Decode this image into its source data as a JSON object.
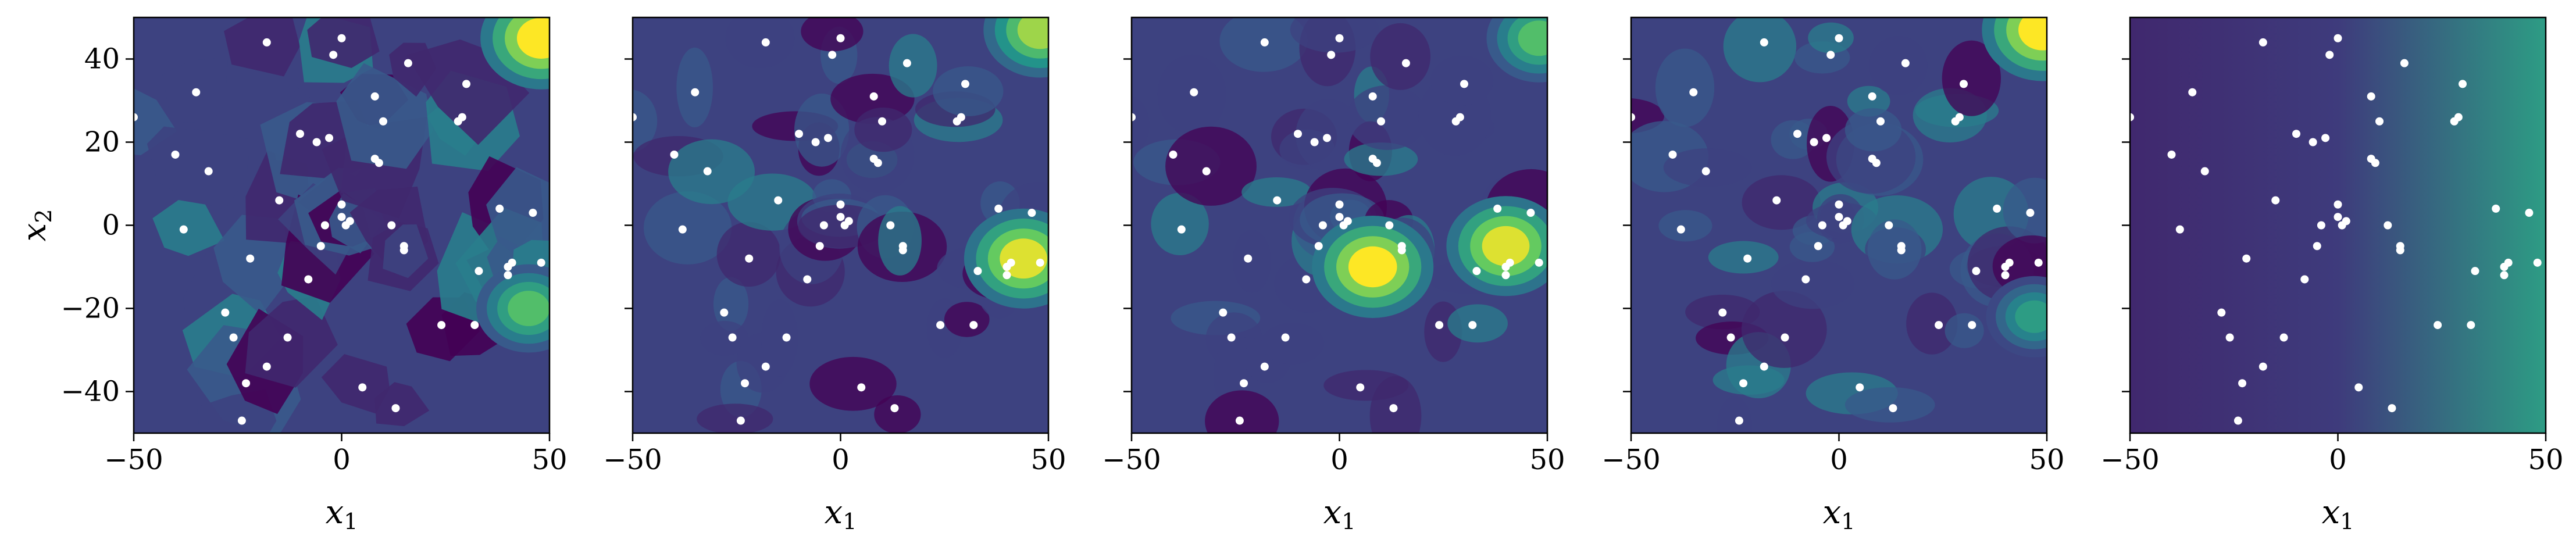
{
  "chart_data": {
    "type": "heatmap",
    "layout": "1x5 panels, shared y-axis",
    "xlabel": "x",
    "xlabel_sub": "1",
    "ylabel": "x",
    "ylabel_sub": "2",
    "xlim": [
      -50,
      50
    ],
    "ylim": [
      -50,
      50
    ],
    "x_ticks": [
      -50,
      0,
      50
    ],
    "x_tick_labels": [
      "−50",
      "0",
      "50"
    ],
    "y_ticks": [
      40,
      20,
      0,
      -20,
      -40
    ],
    "y_tick_labels": [
      "40",
      "20",
      "0",
      "−20",
      "−40"
    ],
    "colormap": "viridis",
    "colormap_colors": [
      "#440154",
      "#3b528b",
      "#21918c",
      "#5ec962",
      "#fde725"
    ],
    "point_color": "#ffffff",
    "points": [
      [
        -50,
        26
      ],
      [
        -40,
        17
      ],
      [
        -35,
        32
      ],
      [
        -38,
        -1
      ],
      [
        -32,
        13
      ],
      [
        -28,
        -21
      ],
      [
        -26,
        -27
      ],
      [
        -23,
        -38
      ],
      [
        -24,
        -47
      ],
      [
        -22,
        -8
      ],
      [
        -18,
        44
      ],
      [
        -18,
        -34
      ],
      [
        -15,
        6
      ],
      [
        -13,
        -27
      ],
      [
        -10,
        22
      ],
      [
        -8,
        -13
      ],
      [
        -6,
        20
      ],
      [
        -5,
        -5
      ],
      [
        -3,
        21
      ],
      [
        -4,
        0
      ],
      [
        -2,
        41
      ],
      [
        0,
        45
      ],
      [
        0,
        5
      ],
      [
        0,
        2
      ],
      [
        1,
        0
      ],
      [
        2,
        1
      ],
      [
        5,
        -39
      ],
      [
        8,
        31
      ],
      [
        8,
        16
      ],
      [
        9,
        15
      ],
      [
        10,
        25
      ],
      [
        12,
        0
      ],
      [
        13,
        -44
      ],
      [
        15,
        -6
      ],
      [
        15,
        -5
      ],
      [
        16,
        39
      ],
      [
        24,
        -24
      ],
      [
        28,
        25
      ],
      [
        29,
        26
      ],
      [
        30,
        34
      ],
      [
        32,
        -24
      ],
      [
        33,
        -11
      ],
      [
        38,
        4
      ],
      [
        40,
        -12
      ],
      [
        40,
        -10
      ],
      [
        41,
        -9
      ],
      [
        46,
        3
      ],
      [
        48,
        -9
      ]
    ],
    "panels": [
      {
        "style": "nearest-neighbor regions",
        "high_regions": [
          {
            "x": 48,
            "y": 45,
            "level": 1.0
          },
          {
            "x": 45,
            "y": -20,
            "level": 0.7
          }
        ]
      },
      {
        "style": "smooth contours",
        "high_regions": [
          {
            "x": 48,
            "y": 47,
            "level": 0.85
          },
          {
            "x": 44,
            "y": -8,
            "level": 0.95
          }
        ]
      },
      {
        "style": "smooth contours",
        "high_regions": [
          {
            "x": 8,
            "y": -10,
            "level": 1.0
          },
          {
            "x": 40,
            "y": -5,
            "level": 0.95
          },
          {
            "x": 48,
            "y": 45,
            "level": 0.7
          }
        ]
      },
      {
        "style": "smooth contours",
        "high_regions": [
          {
            "x": 49,
            "y": 47,
            "level": 1.0
          },
          {
            "x": 47,
            "y": -22,
            "level": 0.55
          }
        ]
      },
      {
        "style": "horizontal gradient",
        "high_regions": [
          {
            "x": 50,
            "y": 0,
            "level": 0.55
          }
        ]
      }
    ]
  }
}
